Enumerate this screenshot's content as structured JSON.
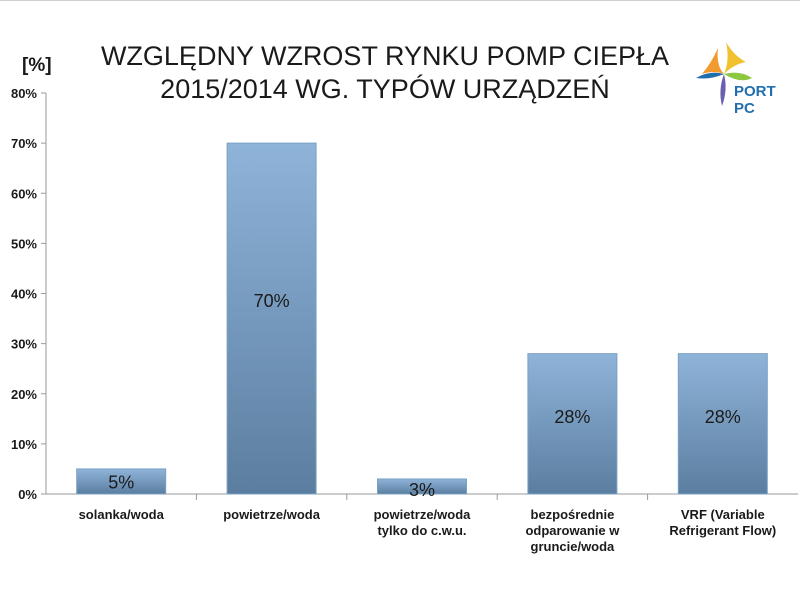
{
  "chart_data": {
    "type": "bar",
    "title_lines": [
      "WZGLĘDNY WZROST RYNKU POMP CIEPŁA",
      "2015/2014 WG. TYPÓW URZĄDZEŃ"
    ],
    "ylabel": "[%]",
    "ylim": [
      0,
      80
    ],
    "yticks": [
      "0%",
      "10%",
      "20%",
      "30%",
      "40%",
      "50%",
      "60%",
      "70%",
      "80%"
    ],
    "categories": [
      [
        "solanka/woda"
      ],
      [
        "powietrze/woda"
      ],
      [
        "powietrze/woda",
        "tylko do c.w.u."
      ],
      [
        "bezpośrednie",
        "odparowanie w",
        "gruncie/woda"
      ],
      [
        "VRF (Variable",
        "Refrigerant Flow)"
      ]
    ],
    "values": [
      5,
      70,
      3,
      28,
      28
    ],
    "data_labels": [
      "5%",
      "70%",
      "3%",
      "28%",
      "28%"
    ],
    "grid": false,
    "legend": "none",
    "bar_color_top": "#8fb4d9",
    "bar_color_bottom": "#5b7ea0"
  },
  "logo": {
    "text": "PORT PC"
  }
}
